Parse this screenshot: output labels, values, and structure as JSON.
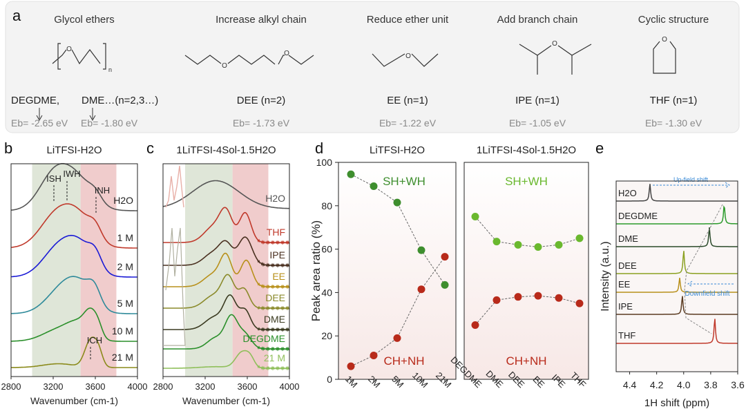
{
  "panel_a": {
    "label": "a",
    "columns": [
      {
        "heading": "Glycol ethers",
        "name": "DEGDME,",
        "name2": "DME…(n=2,3…)",
        "eb": "Eb= -2.65 eV",
        "eb2": "Eb= -1.80 eV"
      },
      {
        "heading": "Increase alkyl chain",
        "name": "DEE (n=2)",
        "eb": "Eb= -1.73 eV"
      },
      {
        "heading": "Reduce ether unit",
        "name": "EE (n=1)",
        "eb": "Eb= -1.22 eV"
      },
      {
        "heading": "Add branch chain",
        "name": "IPE (n=1)",
        "eb": "Eb= -1.05 eV"
      },
      {
        "heading": "Cyclic structure",
        "name": "THF (n=1)",
        "eb": "Eb= -1.30 eV"
      }
    ],
    "atom_o": "O",
    "repeat_n": "n"
  },
  "chart_data": [
    {
      "panel": "b",
      "type": "line",
      "title": "LiTFSI-H2O",
      "xlabel": "Wavenumber (cm-1)",
      "xlim": [
        2800,
        4000
      ],
      "xticks": [
        "2800",
        "3200",
        "3600",
        "4000"
      ],
      "bands": [
        {
          "from": 3000,
          "to": 3460,
          "color": "#dfe6d8"
        },
        {
          "from": 3460,
          "to": 3800,
          "color": "#f0cccc"
        }
      ],
      "annotations": [
        "ISH",
        "IWH",
        "INH",
        "ICH"
      ],
      "series": [
        {
          "name": "H2O",
          "color": "#555555",
          "peaks": [
            [
              3200,
              0.85,
              140
            ],
            [
              3420,
              0.8,
              150
            ],
            [
              3600,
              0.2,
              60
            ]
          ]
        },
        {
          "name": "1 M",
          "color": "#c0392b",
          "peaks": [
            [
              3220,
              0.8,
              150
            ],
            [
              3440,
              0.75,
              140
            ],
            [
              3600,
              0.3,
              60
            ]
          ]
        },
        {
          "name": "2 M",
          "color": "#1a1ad6",
          "peaks": [
            [
              3250,
              0.75,
              150
            ],
            [
              3460,
              0.7,
              130
            ],
            [
              3600,
              0.35,
              60
            ]
          ]
        },
        {
          "name": "5 M",
          "color": "#2e8a9a",
          "peaks": [
            [
              3280,
              0.6,
              150
            ],
            [
              3460,
              0.6,
              130
            ],
            [
              3590,
              0.4,
              60
            ]
          ]
        },
        {
          "name": "10 M",
          "color": "#2a8f2a",
          "peaks": [
            [
              3250,
              0.3,
              150
            ],
            [
              3450,
              0.4,
              110
            ],
            [
              3560,
              0.55,
              60
            ],
            [
              3630,
              0.2,
              40
            ]
          ]
        },
        {
          "name": "21 M",
          "color": "#8a8a1a",
          "peaks": [
            [
              3250,
              0.1,
              150
            ],
            [
              3555,
              0.7,
              55
            ],
            [
              3630,
              0.35,
              40
            ]
          ]
        }
      ]
    },
    {
      "panel": "c",
      "type": "line",
      "title": "1LiTFSI-4Sol-1.5H2O",
      "xlabel": "Wavenumber (cm-1)",
      "xlim": [
        2800,
        4000
      ],
      "xticks": [
        "2800",
        "3200",
        "3600",
        "4000"
      ],
      "bands": [
        {
          "from": 3010,
          "to": 3460,
          "color": "#dfe6d8"
        },
        {
          "from": 3460,
          "to": 3800,
          "color": "#f0cccc"
        }
      ],
      "series": [
        {
          "name": "H2O",
          "color": "#555555",
          "peaks": [
            [
              3300,
              0.9,
              220
            ]
          ]
        },
        {
          "name": "THF",
          "color": "#c0392b",
          "peaks": [
            [
              3280,
              0.5,
              90
            ],
            [
              3400,
              0.9,
              60
            ],
            [
              3580,
              0.95,
              55
            ]
          ]
        },
        {
          "name": "IPE",
          "color": "#4a3020",
          "peaks": [
            [
              3280,
              0.4,
              90
            ],
            [
              3400,
              0.6,
              60
            ],
            [
              3580,
              0.9,
              65
            ]
          ]
        },
        {
          "name": "EE",
          "color": "#b8901a",
          "peaks": [
            [
              3280,
              0.4,
              90
            ],
            [
              3400,
              0.9,
              55
            ],
            [
              3590,
              0.85,
              55
            ]
          ]
        },
        {
          "name": "DEE",
          "color": "#8a8a2a",
          "peaks": [
            [
              3280,
              0.4,
              90
            ],
            [
              3420,
              0.95,
              60
            ],
            [
              3570,
              0.6,
              50
            ]
          ]
        },
        {
          "name": "DME",
          "color": "#3a3a20",
          "peaks": [
            [
              3290,
              0.4,
              90
            ],
            [
              3440,
              1.0,
              60
            ],
            [
              3580,
              0.6,
              50
            ]
          ]
        },
        {
          "name": "DEGDME",
          "color": "#2a8f2a",
          "peaks": [
            [
              3300,
              0.35,
              80
            ],
            [
              3450,
              1.0,
              60
            ],
            [
              3580,
              0.45,
              60
            ]
          ]
        },
        {
          "name": "21 M",
          "color": "#8fbf5a",
          "peaks": [
            [
              3300,
              0.05,
              150
            ],
            [
              3550,
              0.5,
              60
            ],
            [
              3630,
              0.25,
              40
            ]
          ]
        }
      ]
    },
    {
      "panel": "d",
      "type": "scatter",
      "ylabel": "Peak area ratio (%)",
      "ylim": [
        0,
        100
      ],
      "yticks": [
        "0",
        "20",
        "40",
        "60",
        "80",
        "100"
      ],
      "subplots": [
        {
          "title": "LiTFSI-H2O",
          "categories": [
            "1M",
            "2M",
            "5M",
            "10M",
            "21M"
          ],
          "series": [
            {
              "name": "SH+WH",
              "color": "#3e8e2e",
              "values": [
                94.5,
                89,
                81.5,
                59.5,
                43.5
              ]
            },
            {
              "name": "CH+NH",
              "color": "#b82a1a",
              "values": [
                6,
                11,
                19,
                41.5,
                56.5
              ]
            }
          ]
        },
        {
          "title": "1LiTFSI-4Sol-1.5H2O",
          "categories": [
            "DEGDME",
            "DME",
            "DEE",
            "EE",
            "IPE",
            "THF"
          ],
          "series": [
            {
              "name": "SH+WH",
              "color": "#6ab82e",
              "values": [
                75,
                63.5,
                62,
                61,
                62,
                65
              ]
            },
            {
              "name": "CH+NH",
              "color": "#b82a1a",
              "values": [
                25,
                36.5,
                38,
                38.5,
                37.5,
                35
              ]
            }
          ]
        }
      ]
    },
    {
      "panel": "e",
      "type": "line",
      "ylabel": "Intensity (a.u.)",
      "xlabel": "1H shift (ppm)",
      "xlim": [
        4.5,
        3.6
      ],
      "xticks": [
        "4.4",
        "4.2",
        "4.0",
        "3.8",
        "3.6"
      ],
      "annotations": [
        "Up-field shift",
        "Downfield shift"
      ],
      "series": [
        {
          "name": "H2O",
          "color": "#444444",
          "peak_ppm": 4.25
        },
        {
          "name": "DEGDME",
          "color": "#2a9a2a",
          "peak_ppm": 3.7
        },
        {
          "name": "DME",
          "color": "#2a4a2a",
          "peak_ppm": 3.81
        },
        {
          "name": "DEE",
          "color": "#8aa020",
          "peak_ppm": 4.0
        },
        {
          "name": "EE",
          "color": "#b8901a",
          "peak_ppm": 4.03
        },
        {
          "name": "IPE",
          "color": "#5a3a20",
          "peak_ppm": 4.01
        },
        {
          "name": "THF",
          "color": "#c0392b",
          "peak_ppm": 3.77
        }
      ]
    }
  ]
}
